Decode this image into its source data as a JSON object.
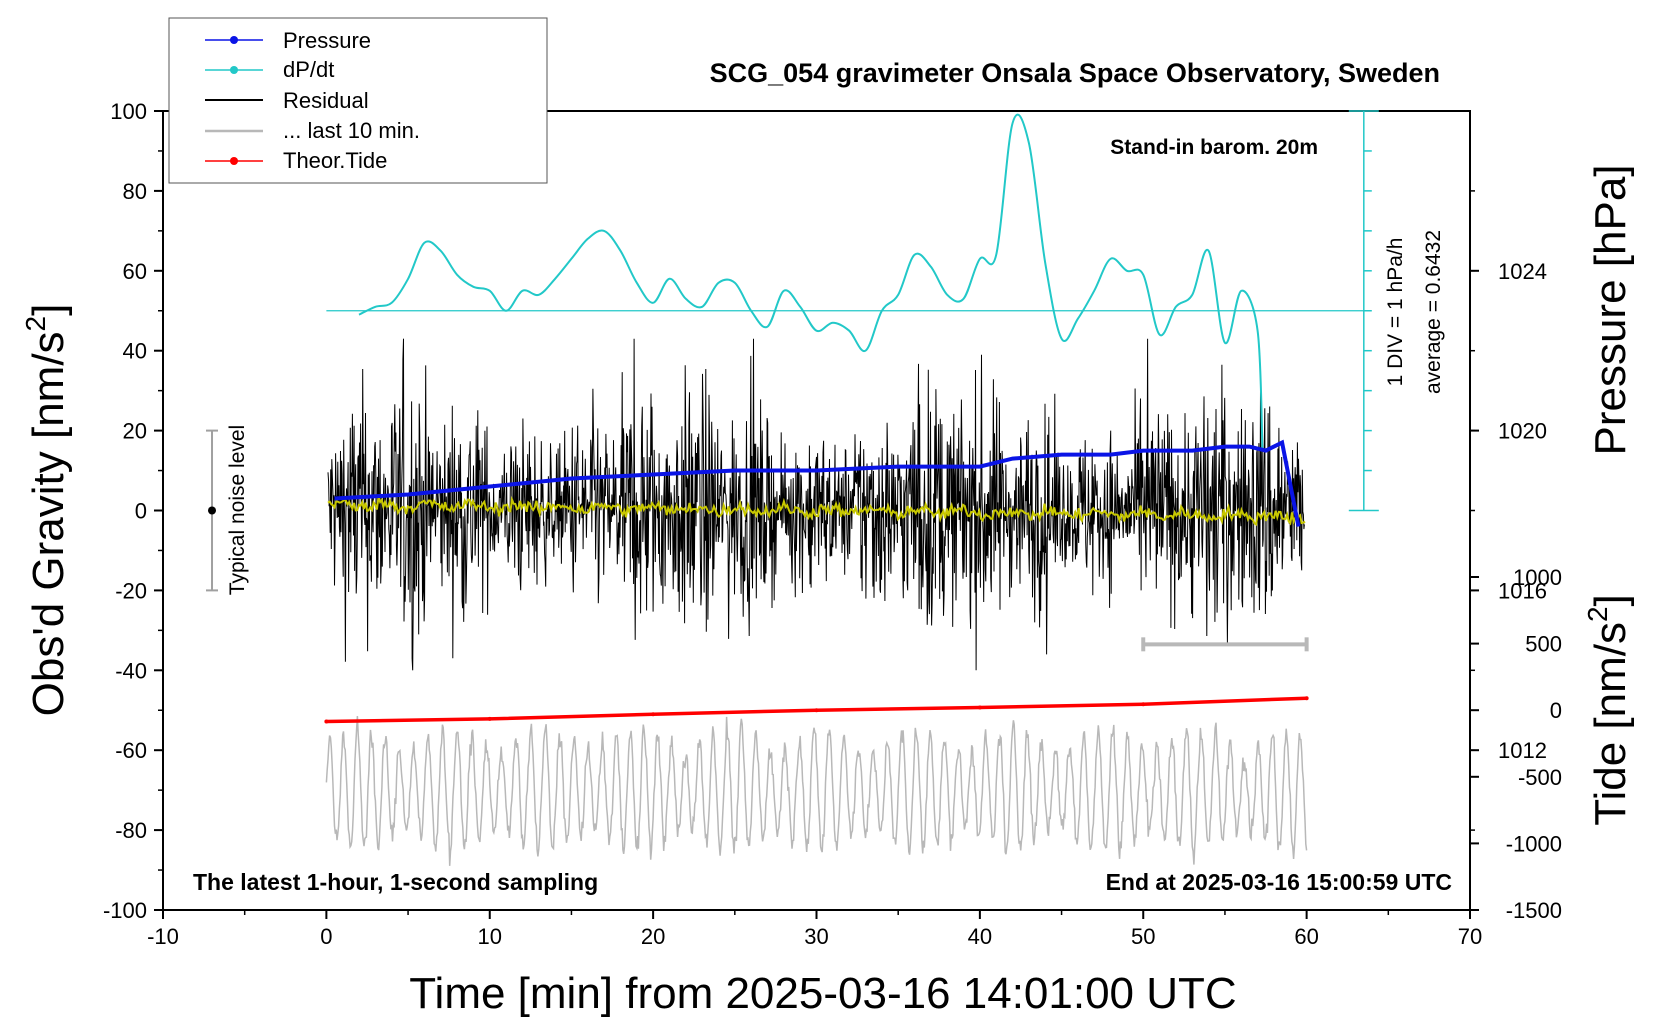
{
  "colors": {
    "pressure": "#0a14e6",
    "dpdt": "#22c8c8",
    "residual": "#000000",
    "last10": "#b8b8b8",
    "tide": "#ff0000",
    "smoothed": "#c8c800",
    "noise": "#a0a0a0"
  },
  "chart_data": {
    "type": "line",
    "title": "SCG_054 gravimeter Onsala Space Observatory, Sweden",
    "xlabel": "Time [min] from 2025-03-16 14:01:00 UTC",
    "ylabel_left": "Obs'd Gravity [nm/s",
    "ylabel_left_sup": "2",
    "ylabel_left_end": "]",
    "ylabel_right_pressure": "Pressure [hPa]",
    "ylabel_right_tide": "Tide [nm/s",
    "ylabel_right_tide_sup": "2",
    "ylabel_right_tide_end": "]",
    "xlim": [
      -10,
      70
    ],
    "ylim": [
      -100,
      100
    ],
    "xticks": [
      "-10",
      "0",
      "10",
      "20",
      "30",
      "40",
      "50",
      "60",
      "70"
    ],
    "yticks": [
      "-100",
      "-80",
      "-60",
      "-40",
      "-20",
      "0",
      "20",
      "40",
      "60",
      "80",
      "100"
    ],
    "pressure_axis": {
      "ylim": [
        1008,
        1028
      ],
      "ticks": [
        "1012",
        "1016",
        "1020",
        "1024"
      ]
    },
    "tide_axis": {
      "ylim": [
        -1500,
        1000
      ],
      "ticks": [
        "-1500",
        "-1000",
        "-500",
        "0",
        "500",
        "1000"
      ]
    },
    "legend": [
      "Pressure",
      "dP/dt",
      "Residual",
      "... last 10 min.",
      "Theor.Tide"
    ],
    "annotations": {
      "barometer": "Stand-in barom. 20m",
      "div_label": "1 DIV = 1 hPa/h",
      "average_label": "average = 0.6432",
      "noise_label": "Typical noise level",
      "bottom_left": "The latest 1-hour, 1-second sampling",
      "bottom_right": "End at 2025-03-16 15:00:59 UTC"
    },
    "series": [
      {
        "name": "Pressure",
        "axis": "pressure",
        "x": [
          0.5,
          5,
          10,
          15,
          20,
          25,
          30,
          35,
          40,
          42,
          45,
          48,
          50,
          53,
          55,
          56.5,
          57.5,
          58.5,
          59.5
        ],
        "values": [
          1018.3,
          1018.4,
          1018.6,
          1018.8,
          1018.9,
          1019.0,
          1019.0,
          1019.1,
          1019.1,
          1019.3,
          1019.4,
          1019.4,
          1019.5,
          1019.5,
          1019.6,
          1019.6,
          1019.5,
          1019.7,
          1017.6
        ]
      },
      {
        "name": "dP/dt",
        "axis": "gravity",
        "x": [
          2,
          3,
          4,
          5,
          6,
          7,
          8,
          9,
          10,
          11,
          12,
          13,
          14,
          15,
          16,
          17,
          18,
          19,
          20,
          21,
          22,
          23,
          24,
          25,
          26,
          27,
          28,
          29,
          30,
          31,
          32,
          33,
          34,
          35,
          36,
          37,
          38,
          39,
          40,
          41,
          42,
          43,
          44,
          45,
          46,
          47,
          48,
          49,
          50,
          51,
          52,
          53,
          54,
          55,
          56,
          57,
          57.3
        ],
        "values": [
          49,
          51,
          52,
          58,
          67,
          65,
          59,
          56,
          55,
          50,
          55,
          54,
          58,
          63,
          68,
          70,
          65,
          57,
          52,
          58,
          53,
          51,
          57,
          57,
          50,
          46,
          55,
          51,
          45,
          47,
          45,
          40,
          50,
          54,
          64,
          61,
          54,
          53,
          63,
          64,
          97,
          92,
          62,
          43,
          48,
          55,
          63,
          60,
          59,
          44,
          51,
          54,
          65,
          42,
          55,
          45,
          15
        ]
      },
      {
        "name": "Theor.Tide",
        "axis": "tide",
        "x": [
          0,
          10,
          20,
          30,
          40,
          50,
          60
        ],
        "values": [
          -85,
          -65,
          -30,
          0,
          20,
          45,
          90
        ]
      }
    ],
    "typical_noise_level": [
      -20,
      20
    ],
    "pressure_div_per_hpa_h": 1
  }
}
